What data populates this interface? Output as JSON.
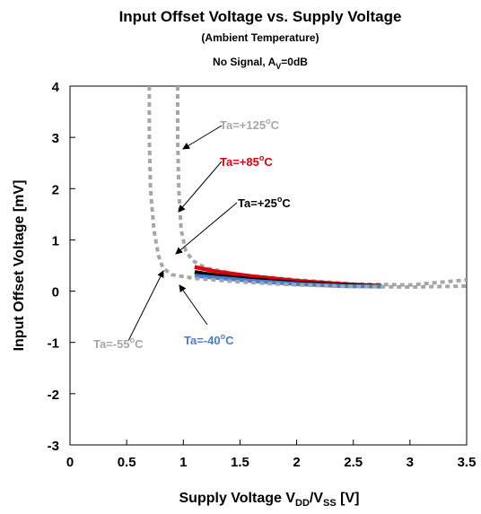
{
  "chart_data": {
    "type": "line",
    "title": "Input Offset Voltage vs. Supply Voltage",
    "subtitle": "(Ambient Temperature)",
    "condition": {
      "text": "No Signal, A",
      "sub": "V",
      "suffix": "=0dB"
    },
    "xlabel": {
      "main": "Supply Voltage V",
      "sub1": "DD",
      "mid": "/V",
      "sub2": "SS",
      "tail": " [V]"
    },
    "ylabel": "Input Offset Voltage [mV]",
    "xlim": [
      0,
      3.5
    ],
    "ylim": [
      -3,
      4
    ],
    "xticks": [
      0,
      0.5,
      1,
      1.5,
      2,
      2.5,
      3,
      3.5
    ],
    "xtick_labels": [
      "0",
      "0.5",
      "1",
      "1.5",
      "2",
      "2.5",
      "3",
      "3.5"
    ],
    "yticks": [
      -3,
      -2,
      -1,
      0,
      1,
      2,
      3,
      4
    ],
    "ytick_labels": [
      "-3",
      "-2",
      "-1",
      "0",
      "1",
      "2",
      "3",
      "4"
    ],
    "grid": false,
    "series": [
      {
        "name": "Ta=+125°C",
        "color": "#a6a6a6",
        "dashed": true,
        "points": [
          [
            0.95,
            4.0
          ],
          [
            0.95,
            3.0
          ],
          [
            0.96,
            2.0
          ],
          [
            0.98,
            1.2
          ],
          [
            1.02,
            0.8
          ],
          [
            1.08,
            0.6
          ],
          [
            1.2,
            0.45
          ],
          [
            1.5,
            0.32
          ],
          [
            2.0,
            0.22
          ],
          [
            2.5,
            0.14
          ],
          [
            3.0,
            0.12
          ],
          [
            3.5,
            0.22
          ]
        ]
      },
      {
        "name": "Ta=+85°C",
        "color": "#e0000b",
        "dashed": false,
        "points": [
          [
            1.1,
            0.47
          ],
          [
            1.3,
            0.38
          ],
          [
            1.6,
            0.29
          ],
          [
            2.0,
            0.2
          ],
          [
            2.4,
            0.14
          ],
          [
            2.75,
            0.1
          ]
        ]
      },
      {
        "name": "Ta=+25°C",
        "color": "#000000",
        "dashed": false,
        "points": [
          [
            1.1,
            0.37
          ],
          [
            1.3,
            0.3
          ],
          [
            1.6,
            0.23
          ],
          [
            2.0,
            0.16
          ],
          [
            2.4,
            0.12
          ],
          [
            2.75,
            0.1
          ]
        ]
      },
      {
        "name": "Ta=-40°C",
        "color": "#4a7bd3",
        "dashed": false,
        "points": [
          [
            1.1,
            0.3
          ],
          [
            1.3,
            0.26
          ],
          [
            1.6,
            0.2
          ],
          [
            2.0,
            0.14
          ],
          [
            2.4,
            0.1
          ],
          [
            2.75,
            0.09
          ]
        ]
      },
      {
        "name": "Ta=-55°C",
        "color": "#a6a6a6",
        "dashed": true,
        "points": [
          [
            0.7,
            4.0
          ],
          [
            0.7,
            3.0
          ],
          [
            0.71,
            2.0
          ],
          [
            0.74,
            1.2
          ],
          [
            0.78,
            0.7
          ],
          [
            0.82,
            0.45
          ],
          [
            0.9,
            0.32
          ],
          [
            1.1,
            0.25
          ],
          [
            1.5,
            0.18
          ],
          [
            2.0,
            0.12
          ],
          [
            2.5,
            0.09
          ],
          [
            3.0,
            0.08
          ],
          [
            3.5,
            0.1
          ]
        ]
      }
    ],
    "annotations": [
      {
        "text": "Ta=+125",
        "deg": "o",
        "unit": "C",
        "color": "#a6a6a6"
      },
      {
        "text": "Ta=+85",
        "deg": "o",
        "unit": "C",
        "color": "#e0000b"
      },
      {
        "text": "Ta=+25",
        "deg": "o",
        "unit": "C",
        "color": "#000000"
      },
      {
        "text": "Ta=-40",
        "deg": "o",
        "unit": "C",
        "color": "#4a7bd3"
      },
      {
        "text": "Ta=-55",
        "deg": "o",
        "unit": "C",
        "color": "#a6a6a6"
      }
    ]
  }
}
